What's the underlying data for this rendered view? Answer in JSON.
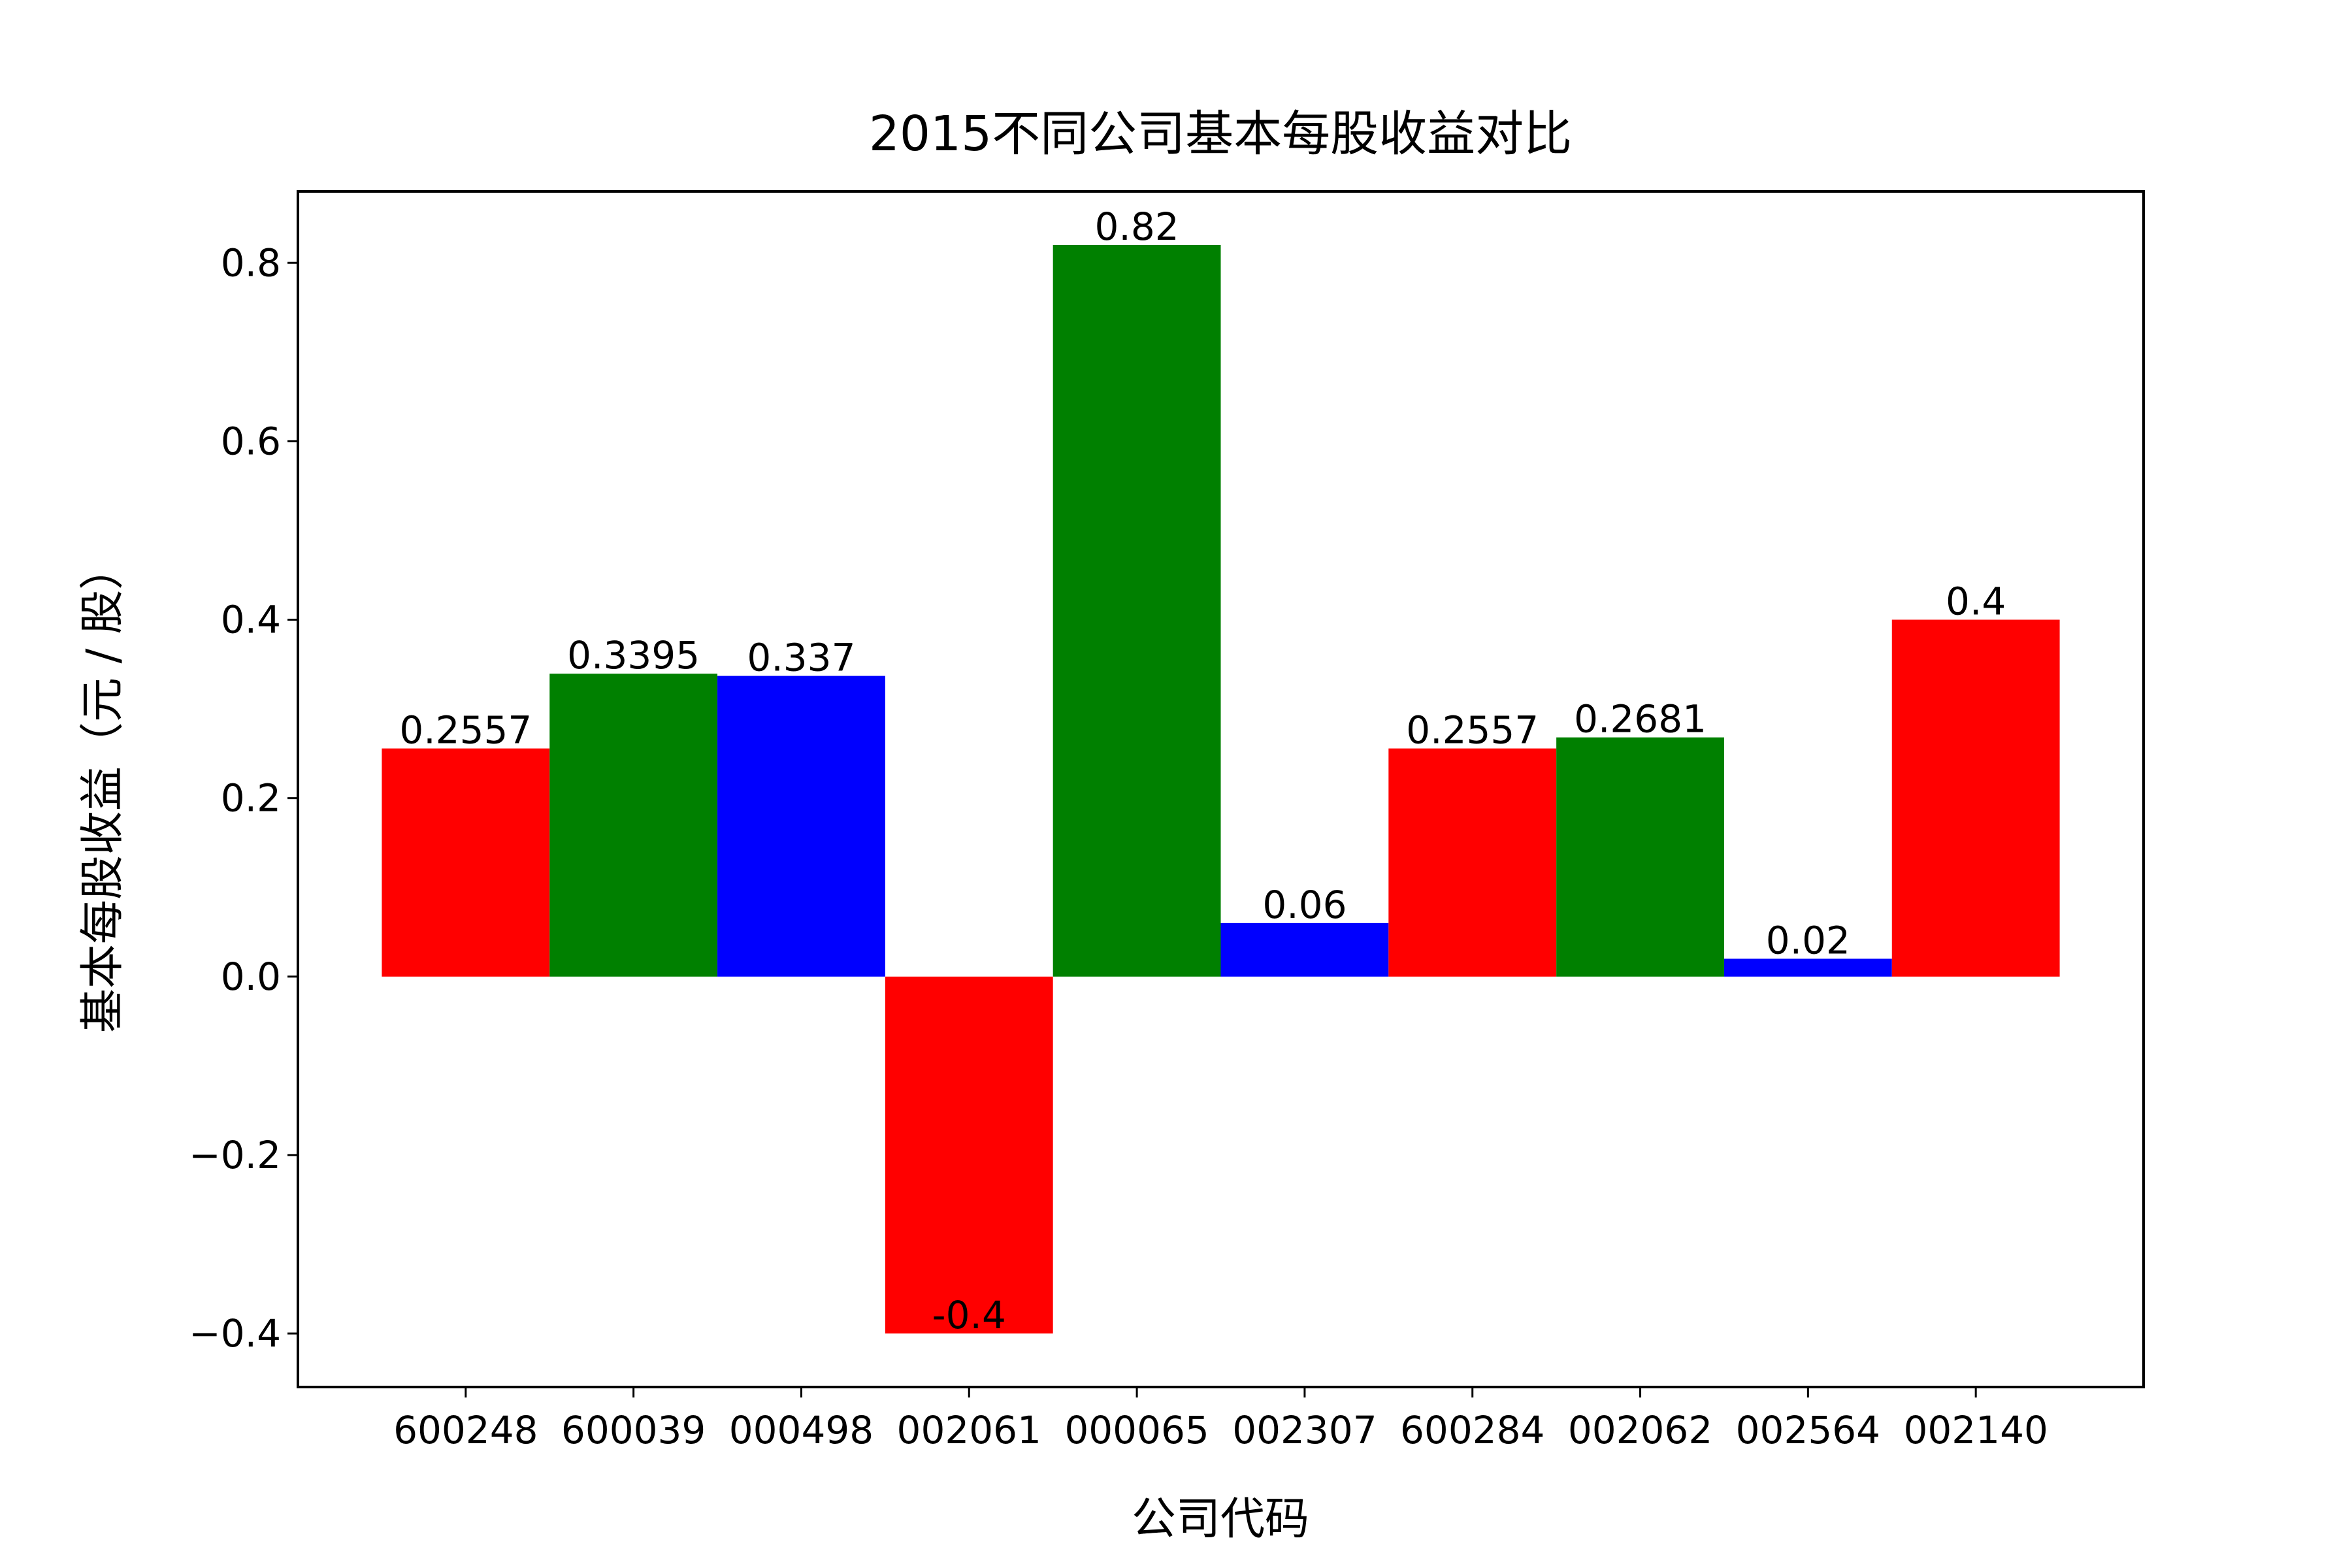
{
  "chart_data": {
    "type": "bar",
    "title": "2015不同公司基本每股收益对比",
    "x_label": "公司代码",
    "y_label": "基本每股收益（元 / 股）",
    "categories": [
      "600248",
      "600039",
      "000498",
      "002061",
      "000065",
      "002307",
      "600284",
      "002062",
      "002564",
      "002140"
    ],
    "values": [
      0.2557,
      0.3395,
      0.337,
      -0.4,
      0.82,
      0.06,
      0.2557,
      0.2681,
      0.02,
      0.4
    ],
    "colors": [
      "#ff0000",
      "#008000",
      "#0000ff",
      "#ff0000",
      "#008000",
      "#0000ff",
      "#ff0000",
      "#008000",
      "#0000ff",
      "#ff0000"
    ],
    "ylim": [
      -0.46,
      0.88
    ],
    "yticks": [
      {
        "value": -0.4,
        "label": "−0.4"
      },
      {
        "value": -0.2,
        "label": "−0.2"
      },
      {
        "value": 0,
        "label": "0.0"
      },
      0.2,
      0.4,
      0.6,
      0.8
    ],
    "grid": false
  }
}
